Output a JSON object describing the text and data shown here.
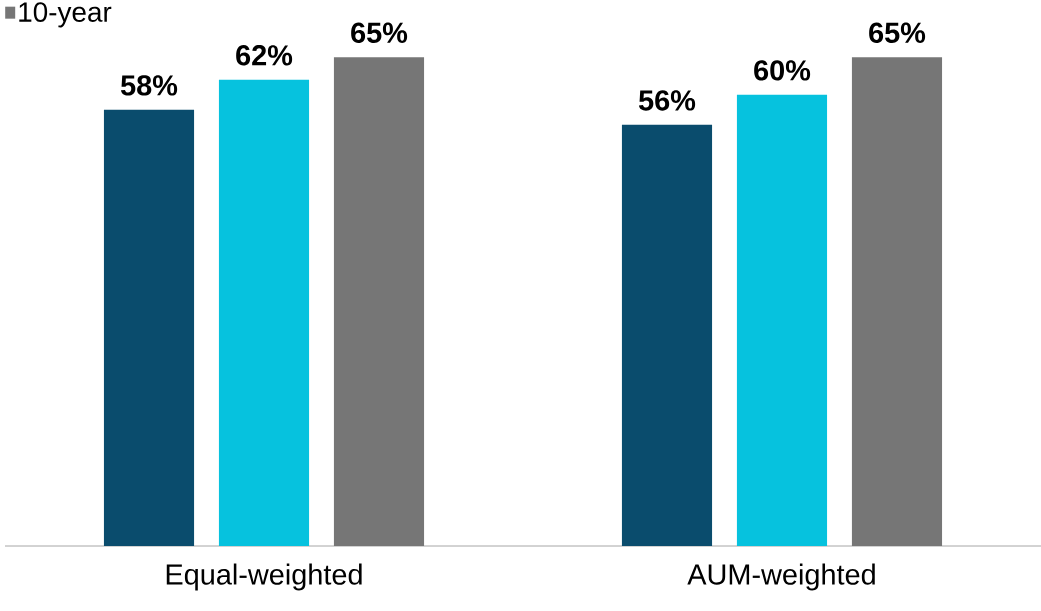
{
  "chart_data": {
    "type": "bar",
    "categories": [
      "Equal-weighted",
      "AUM-weighted"
    ],
    "series": [
      {
        "color": "#0a4c6d",
        "values": [
          58,
          56
        ],
        "value_labels": [
          "58%",
          "56%"
        ]
      },
      {
        "color": "#06c2de",
        "values": [
          62,
          60
        ],
        "value_labels": [
          "62%",
          "60%"
        ]
      },
      {
        "name": "10-year",
        "color": "#767676",
        "values": [
          65,
          65
        ],
        "value_labels": [
          "65%",
          "65%"
        ]
      }
    ],
    "legend": "top left"
  }
}
